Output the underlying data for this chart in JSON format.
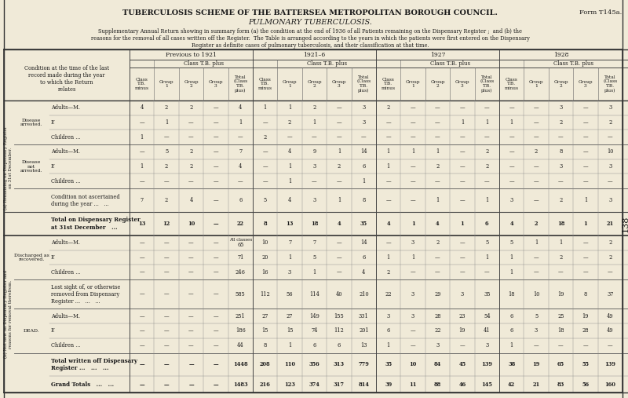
{
  "title1": "TUBERCULOSIS SCHEME OF THE BATTERSEA METROPOLITAN BOROUGH COUNCIL.",
  "title2": "Form T145a.",
  "title3": "PULMONARY TUBERCULOSIS.",
  "subtitle": "Supplementary Annual Return showing in summary form (a) the condition at the end of 1936 of all Patients remaining on the Dispensary Register ;  and (b) the\nreasons for the removal of all cases written off the Register.  The Table is arranged according to the years in which the patients were first entered on the Dispensary\nRegister as definite cases of pulmonary tuberculosis, and their classification at that time.",
  "bg_color": "#f0ead8",
  "text_color": "#1a1a1a",
  "period_labels": [
    "Previous to 1921",
    "1921–6",
    "1927",
    "1928"
  ],
  "sub_col_labels": [
    "Class\nT.B.\nminus",
    "Group\n1",
    "Group\n2",
    "Group\n3",
    "Total\n(Class\nT.B.\nplus)"
  ],
  "stub_header": "Condition at the time of the last\nrecord made during the year\nto which the Return\nrelates",
  "sec_a_label": "(a) Remaining on Dispensary Register\non 31st December.",
  "sec_b_label": "(b) Not now on Dispensary Register and\nreasons for removal therefrom.",
  "page_num": "138",
  "rows": [
    {
      "label": "Adults—M.",
      "group": "Disease arrested.",
      "data": [
        "4",
        "2",
        "2",
        "—",
        "4",
        "1",
        "1",
        "2",
        "—",
        "3",
        "2",
        "—",
        "—",
        "—",
        "—",
        "—",
        "—",
        "3",
        "—",
        "3"
      ]
    },
    {
      "label": "F.",
      "group": "",
      "data": [
        "—",
        "1",
        "—",
        "—",
        "1",
        "—",
        "2",
        "1",
        "—",
        "3",
        "—",
        "—",
        "—",
        "1",
        "1",
        "1",
        "—",
        "2",
        "—",
        "2"
      ]
    },
    {
      "label": "Children ...",
      "group": "",
      "data": [
        "1",
        "—",
        "—",
        "—",
        "—",
        "2",
        "—",
        "—",
        "—",
        "—",
        "—",
        "—",
        "—",
        "—",
        "—",
        "—",
        "—",
        "—",
        "—",
        "—"
      ]
    },
    {
      "label": "Adults—M.",
      "group": "Disease not arrested.",
      "data": [
        "—",
        "5",
        "2",
        "—",
        "7",
        "—",
        "4",
        "9",
        "1",
        "14",
        "1",
        "1",
        "1",
        "—",
        "2",
        "—",
        "2",
        "8",
        "—",
        "10"
      ]
    },
    {
      "label": "F.",
      "group": "",
      "data": [
        "1",
        "2",
        "2",
        "—",
        "4",
        "—",
        "1",
        "3",
        "2",
        "6",
        "1",
        "—",
        "2",
        "—",
        "2",
        "—",
        "—",
        "3",
        "—",
        "3"
      ]
    },
    {
      "label": "Children ...",
      "group": "",
      "data": [
        "—",
        "—",
        "—",
        "—",
        "—",
        "—",
        "1",
        "—",
        "—",
        "1",
        "—",
        "—",
        "—",
        "—",
        "—",
        "—",
        "—",
        "—",
        "—",
        "—"
      ]
    },
    {
      "label": "Condition not ascertained\nduring the year ...   ...",
      "group": "",
      "data": [
        "7",
        "2",
        "4",
        "—",
        "6",
        "5",
        "4",
        "3",
        "1",
        "8",
        "—",
        "—",
        "1",
        "—",
        "1",
        "3",
        "—",
        "2",
        "1",
        "3"
      ]
    },
    {
      "label": "Total on Dispensary Register\nat 31st December   ...",
      "group": "",
      "bold": true,
      "data": [
        "13",
        "12",
        "10",
        "—",
        "22",
        "8",
        "13",
        "18",
        "4",
        "35",
        "4",
        "1",
        "4",
        "1",
        "6",
        "4",
        "2",
        "18",
        "1",
        "21"
      ]
    },
    {
      "label": "Adults—M.",
      "group": "Discharged as recovered.",
      "allclasses": true,
      "data": [
        "—",
        "—",
        "—",
        "—",
        "65",
        "10",
        "7",
        "7",
        "—",
        "14",
        "—",
        "3",
        "2",
        "—",
        "5",
        "5",
        "1",
        "1",
        "—",
        "2"
      ]
    },
    {
      "label": "F.",
      "group": "",
      "data": [
        "—",
        "—",
        "—",
        "—",
        "71",
        "20",
        "1",
        "5",
        "—",
        "6",
        "1",
        "1",
        "—",
        "—",
        "1",
        "1",
        "—",
        "2",
        "—",
        "2"
      ]
    },
    {
      "label": "Children ...",
      "group": "",
      "data": [
        "—",
        "—",
        "—",
        "—",
        "246",
        "16",
        "3",
        "1",
        "—",
        "4",
        "2",
        "—",
        "—",
        "—",
        "—",
        "1",
        "—",
        "—",
        "—",
        "—"
      ]
    },
    {
      "label": "Lost sight of, or otherwise\nremoved from Dispensary\nRegister ...   ...   ...",
      "group": "",
      "data": [
        "—",
        "—",
        "—",
        "—",
        "585",
        "112",
        "56",
        "114",
        "40",
        "210",
        "22",
        "3",
        "29",
        "3",
        "35",
        "18",
        "10",
        "19",
        "8",
        "37"
      ]
    },
    {
      "label": "Adults—M.",
      "group": "DEAD.",
      "data": [
        "—",
        "—",
        "—",
        "—",
        "251",
        "27",
        "27",
        "149",
        "155",
        "331",
        "3",
        "3",
        "28",
        "23",
        "54",
        "6",
        "5",
        "25",
        "19",
        "49"
      ]
    },
    {
      "label": "F.",
      "group": "",
      "data": [
        "—",
        "—",
        "—",
        "—",
        "186",
        "15",
        "15",
        "74",
        "112",
        "201",
        "6",
        "—",
        "22",
        "19",
        "41",
        "6",
        "3",
        "18",
        "28",
        "49"
      ]
    },
    {
      "label": "Children ...",
      "group": "",
      "data": [
        "—",
        "—",
        "—",
        "—",
        "44",
        "8",
        "1",
        "6",
        "6",
        "13",
        "1",
        "—",
        "3",
        "—",
        "3",
        "1",
        "—",
        "—",
        "—",
        "—"
      ]
    },
    {
      "label": "Total written off Dispensary\nRegister ...   ...   ...",
      "group": "",
      "bold": true,
      "data": [
        "—",
        "—",
        "—",
        "—",
        "1448",
        "208",
        "110",
        "356",
        "313",
        "779",
        "35",
        "10",
        "84",
        "45",
        "139",
        "38",
        "19",
        "65",
        "55",
        "139"
      ]
    },
    {
      "label": "Grand Totals   ...   ...",
      "group": "",
      "bold": true,
      "data": [
        "—",
        "—",
        "—",
        "—",
        "1483",
        "216",
        "123",
        "374",
        "317",
        "814",
        "39",
        "11",
        "88",
        "46",
        "145",
        "42",
        "21",
        "83",
        "56",
        "160"
      ]
    }
  ],
  "group_spans": {
    "Disease arrested.": [
      0,
      2
    ],
    "Disease not arrested.": [
      3,
      5
    ],
    "Discharged as recovered.": [
      8,
      10
    ],
    "DEAD.": [
      12,
      14
    ]
  },
  "sec_a_rows": [
    0,
    7
  ],
  "sec_b_rows": [
    8,
    16
  ]
}
